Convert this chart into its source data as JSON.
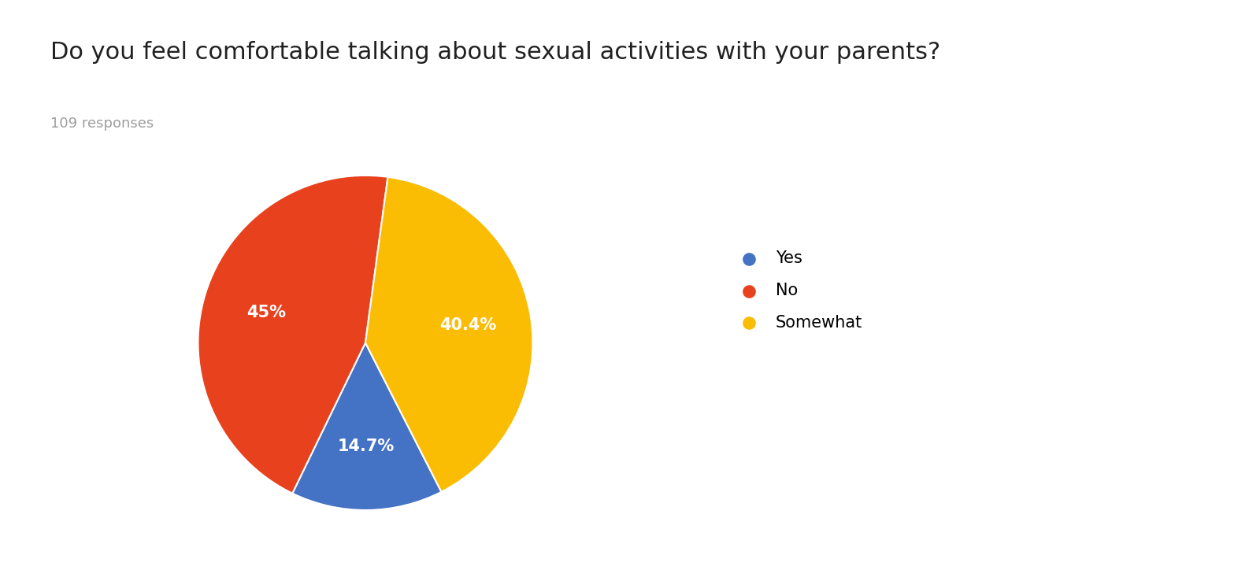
{
  "title": "Do you feel comfortable talking about sexual activities with your parents?",
  "subtitle": "109 responses",
  "labels": [
    "Yes",
    "No",
    "Somewhat"
  ],
  "values": [
    14.7,
    45.0,
    40.4
  ],
  "colors": [
    "#4472C4",
    "#E8411E",
    "#FBBC04"
  ],
  "autopct_labels": [
    "14.7%",
    "45%",
    "40.4%"
  ],
  "title_fontsize": 22,
  "subtitle_fontsize": 13,
  "subtitle_color": "#9E9E9E",
  "legend_fontsize": 15,
  "pct_fontsize": 15,
  "background_color": "#ffffff",
  "startangle": -63,
  "counterclock": false
}
